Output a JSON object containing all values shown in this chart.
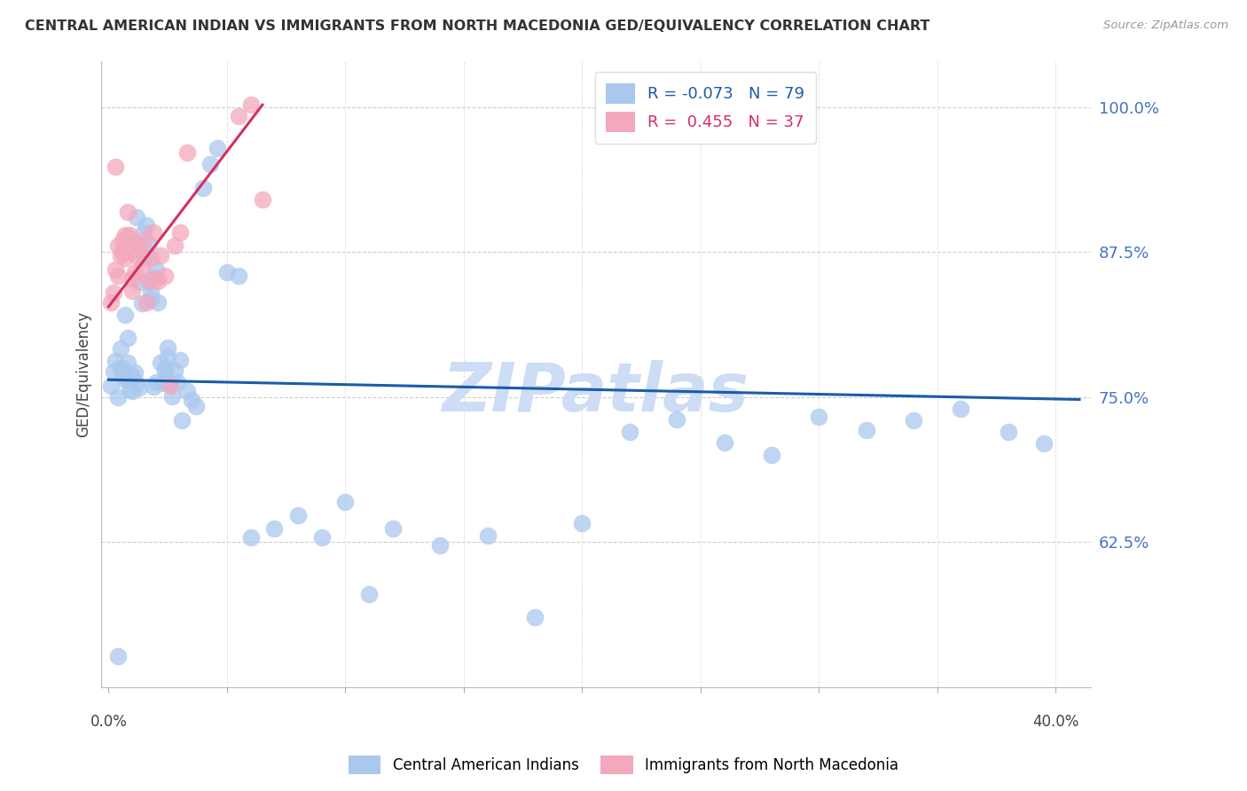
{
  "title": "CENTRAL AMERICAN INDIAN VS IMMIGRANTS FROM NORTH MACEDONIA GED/EQUIVALENCY CORRELATION CHART",
  "source": "Source: ZipAtlas.com",
  "ylabel": "GED/Equivalency",
  "yticks": [
    0.625,
    0.75,
    0.875,
    1.0
  ],
  "ytick_labels": [
    "62.5%",
    "75.0%",
    "87.5%",
    "100.0%"
  ],
  "ymin": 0.5,
  "ymax": 1.04,
  "xmin": -0.003,
  "xmax": 0.415,
  "xtick_left_label": "0.0%",
  "xtick_right_label": "40.0%",
  "blue_label": "Central American Indians",
  "pink_label": "Immigrants from North Macedonia",
  "blue_R": -0.073,
  "blue_N": 79,
  "pink_R": 0.455,
  "pink_N": 37,
  "blue_color": "#aac8ee",
  "pink_color": "#f4a8bc",
  "blue_line_color": "#1a5ca8",
  "pink_line_color": "#d43060",
  "watermark_text": "ZIPatlas",
  "watermark_color": "#ccddf5",
  "blue_scatter_x": [
    0.001,
    0.002,
    0.003,
    0.004,
    0.005,
    0.006,
    0.007,
    0.008,
    0.009,
    0.01,
    0.011,
    0.012,
    0.013,
    0.015,
    0.016,
    0.017,
    0.018,
    0.019,
    0.02,
    0.021,
    0.022,
    0.023,
    0.024,
    0.025,
    0.026,
    0.027,
    0.028,
    0.029,
    0.03,
    0.031,
    0.033,
    0.035,
    0.037,
    0.04,
    0.043,
    0.046,
    0.05,
    0.055,
    0.06,
    0.07,
    0.08,
    0.09,
    0.1,
    0.11,
    0.12,
    0.14,
    0.16,
    0.18,
    0.2,
    0.22,
    0.24,
    0.26,
    0.28,
    0.3,
    0.32,
    0.34,
    0.36,
    0.38,
    0.395,
    0.007,
    0.008,
    0.009,
    0.01,
    0.011,
    0.012,
    0.013,
    0.014,
    0.015,
    0.016,
    0.017,
    0.018,
    0.019,
    0.02,
    0.005,
    0.006,
    0.007,
    0.024,
    0.025,
    0.004
  ],
  "blue_scatter_y": [
    0.76,
    0.772,
    0.781,
    0.75,
    0.792,
    0.775,
    0.821,
    0.78,
    0.765,
    0.755,
    0.882,
    0.905,
    0.849,
    0.892,
    0.898,
    0.882,
    0.841,
    0.853,
    0.86,
    0.832,
    0.78,
    0.762,
    0.775,
    0.793,
    0.762,
    0.751,
    0.773,
    0.763,
    0.782,
    0.73,
    0.755,
    0.748,
    0.742,
    0.93,
    0.951,
    0.965,
    0.858,
    0.855,
    0.629,
    0.637,
    0.648,
    0.629,
    0.66,
    0.58,
    0.637,
    0.622,
    0.631,
    0.56,
    0.641,
    0.72,
    0.731,
    0.711,
    0.7,
    0.733,
    0.722,
    0.73,
    0.74,
    0.72,
    0.71,
    0.768,
    0.801,
    0.757,
    0.768,
    0.771,
    0.762,
    0.758,
    0.831,
    0.87,
    0.873,
    0.849,
    0.835,
    0.759,
    0.763,
    0.775,
    0.769,
    0.765,
    0.773,
    0.785,
    0.527
  ],
  "pink_scatter_x": [
    0.001,
    0.002,
    0.003,
    0.004,
    0.005,
    0.006,
    0.006,
    0.007,
    0.007,
    0.008,
    0.008,
    0.009,
    0.009,
    0.01,
    0.01,
    0.011,
    0.012,
    0.013,
    0.014,
    0.015,
    0.016,
    0.017,
    0.018,
    0.019,
    0.02,
    0.021,
    0.022,
    0.024,
    0.026,
    0.028,
    0.03,
    0.033,
    0.055,
    0.06,
    0.065,
    0.003,
    0.004
  ],
  "pink_scatter_y": [
    0.832,
    0.84,
    0.86,
    0.881,
    0.872,
    0.885,
    0.875,
    0.87,
    0.89,
    0.91,
    0.888,
    0.875,
    0.89,
    0.852,
    0.842,
    0.858,
    0.872,
    0.881,
    0.862,
    0.885,
    0.832,
    0.851,
    0.87,
    0.892,
    0.852,
    0.85,
    0.872,
    0.855,
    0.76,
    0.881,
    0.892,
    0.961,
    0.992,
    1.002,
    0.92,
    0.949,
    0.855
  ],
  "blue_line_x0": 0.0,
  "blue_line_x1": 0.41,
  "blue_line_y0": 0.765,
  "blue_line_y1": 0.748,
  "pink_line_x0": 0.0,
  "pink_line_x1": 0.065,
  "pink_line_y0": 0.828,
  "pink_line_y1": 1.002
}
